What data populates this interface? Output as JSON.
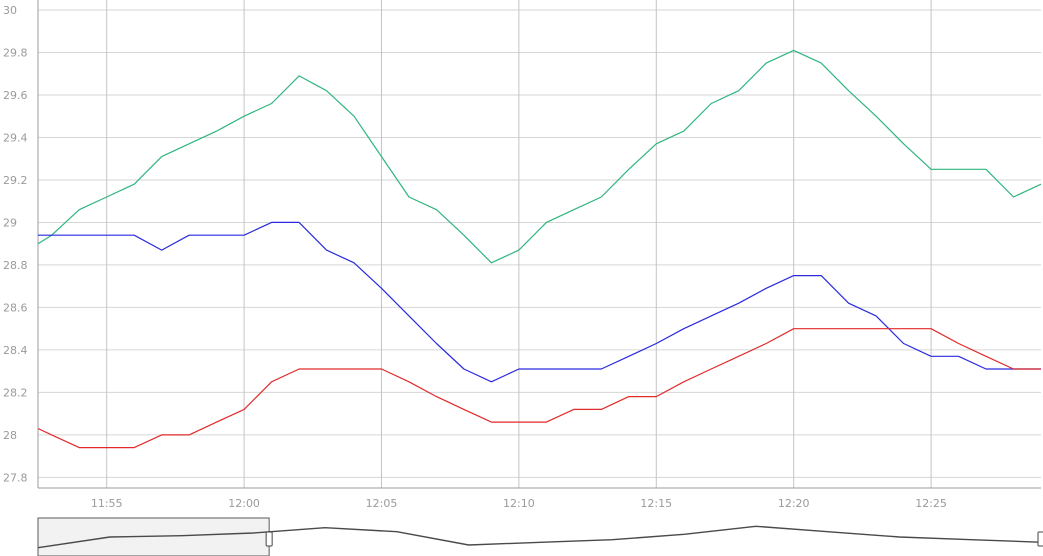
{
  "chart_data": {
    "type": "line",
    "title": "",
    "xlabel": "",
    "ylabel": "",
    "grid": true,
    "xlim": [
      "11:52.5",
      "12:29"
    ],
    "ylim": [
      27.75,
      30
    ],
    "x_ticks": [
      "11:55",
      "12:00",
      "12:05",
      "12:10",
      "12:15",
      "12:20",
      "12:25"
    ],
    "y_ticks": [
      "27.8",
      "28",
      "28.2",
      "28.4",
      "28.6",
      "28.8",
      "29",
      "29.2",
      "29.4",
      "29.6",
      "29.8",
      "30"
    ],
    "x": [
      "11:52.5",
      "11:53",
      "11:54",
      "11:55",
      "11:56",
      "11:57",
      "11:58",
      "11:59",
      "12:00",
      "12:01",
      "12:02",
      "12:03",
      "12:04",
      "12:05",
      "12:06",
      "12:07",
      "12:08",
      "12:09",
      "12:10",
      "12:11",
      "12:12",
      "12:13",
      "12:14",
      "12:15",
      "12:16",
      "12:17",
      "12:18",
      "12:19",
      "12:20",
      "12:21",
      "12:22",
      "12:23",
      "12:24",
      "12:25",
      "12:26",
      "12:27",
      "12:28",
      "12:29"
    ],
    "series": [
      {
        "color": "#2fb57e",
        "values": [
          28.9,
          28.94,
          29.06,
          29.12,
          29.18,
          29.31,
          29.37,
          29.43,
          29.5,
          29.56,
          29.69,
          29.62,
          29.5,
          29.31,
          29.12,
          29.06,
          28.94,
          28.81,
          28.87,
          29.0,
          29.06,
          29.12,
          29.25,
          29.37,
          29.43,
          29.56,
          29.62,
          29.75,
          29.81,
          29.75,
          29.62,
          29.5,
          29.37,
          29.25,
          29.25,
          29.25,
          29.12,
          29.18
        ]
      },
      {
        "color": "#2a2ae0",
        "values": [
          28.94,
          28.94,
          28.94,
          28.94,
          28.94,
          28.87,
          28.94,
          28.94,
          28.94,
          29.0,
          29.0,
          28.87,
          28.81,
          28.69,
          28.56,
          28.43,
          28.31,
          28.25,
          28.31,
          28.31,
          28.31,
          28.31,
          28.37,
          28.43,
          28.5,
          28.56,
          28.62,
          28.69,
          28.75,
          28.75,
          28.62,
          28.56,
          28.43,
          28.37,
          28.37,
          28.31,
          28.31,
          28.31
        ]
      },
      {
        "color": "#e22a2a",
        "values": [
          28.03,
          28.0,
          27.94,
          27.94,
          27.94,
          28.0,
          28.0,
          28.06,
          28.12,
          28.25,
          28.31,
          28.31,
          28.31,
          28.31,
          28.25,
          28.18,
          28.12,
          28.06,
          28.06,
          28.06,
          28.12,
          28.12,
          28.18,
          28.18,
          28.25,
          28.31,
          28.37,
          28.43,
          28.5,
          28.5,
          28.5,
          28.5,
          28.5,
          28.5,
          28.43,
          28.37,
          28.31,
          28.31
        ]
      }
    ]
  },
  "navigator": {
    "values": [
      29.0,
      29.4,
      29.45,
      29.55,
      29.75,
      29.6,
      29.1,
      29.2,
      29.3,
      29.5,
      29.8,
      29.6,
      29.4,
      29.3,
      29.2
    ],
    "window_end_fraction": 0.23
  }
}
